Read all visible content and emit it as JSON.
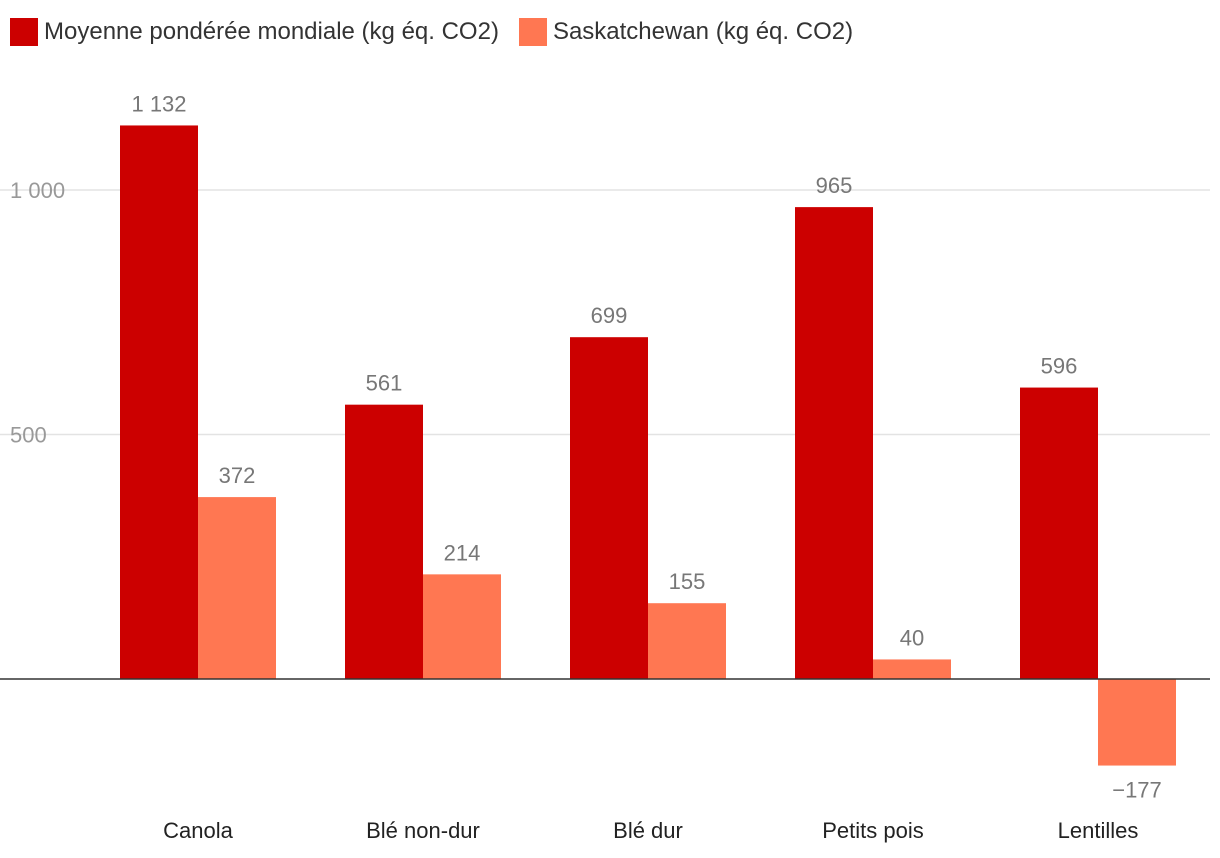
{
  "chart_data": {
    "type": "bar",
    "categories": [
      "Canola",
      "Blé non-dur",
      "Blé dur",
      "Petits pois",
      "Lentilles"
    ],
    "series": [
      {
        "name": "Moyenne pondérée mondiale (kg éq. CO2)",
        "color": "#cc0000",
        "values": [
          1132,
          561,
          699,
          965,
          596
        ],
        "labels": [
          "1 132",
          "561",
          "699",
          "965",
          "596"
        ]
      },
      {
        "name": "Saskatchewan (kg éq. CO2)",
        "color": "#ff7752",
        "values": [
          372,
          214,
          155,
          40,
          -177
        ],
        "labels": [
          "372",
          "214",
          "155",
          "40",
          "−177"
        ]
      }
    ],
    "yticks": [
      500,
      1000
    ],
    "ytick_labels": [
      "500",
      "1 000"
    ],
    "ylim": [
      -220,
      1260
    ],
    "grid": true,
    "legend": "top-left",
    "title": "",
    "xlabel": "",
    "ylabel": ""
  }
}
